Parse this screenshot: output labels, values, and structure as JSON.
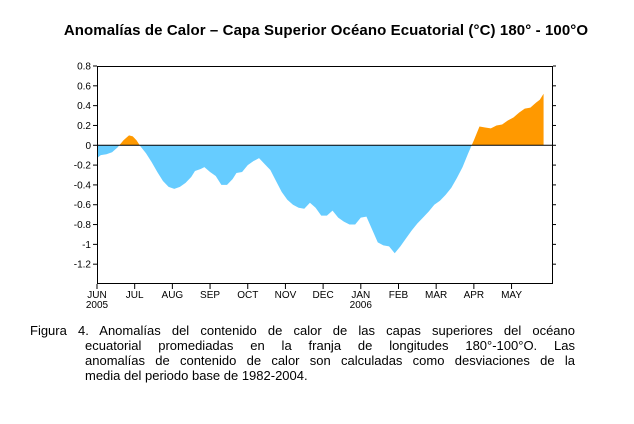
{
  "title": "Anomalías de Calor – Capa Superior Océano Ecuatorial (°C)  180° - 100°O",
  "caption": {
    "line1": "Figura 4. Anomalías del contenido de calor de las capas superiores del océano",
    "line2": "ecuatorial promediadas en la franja de longitudes 180°-100°O. Las",
    "line3": "anomalías  de contenido de calor son calculadas como desviaciones de la",
    "line4": "media del periodo base de 1982-2004."
  },
  "colors": {
    "positive": "#ff9900",
    "negative": "#66ccff",
    "axis": "#000000"
  },
  "chart_data": {
    "type": "area",
    "title": "Anomalías de Calor – Capa Superior Océano Ecuatorial (°C)  180° - 100°O",
    "xlabel": "",
    "ylabel": "",
    "ylim": [
      -1.4,
      0.8
    ],
    "yticks": [
      "0.8",
      "0.6",
      "0.4",
      "0.2",
      "0",
      "-0.2",
      "-0.4",
      "-0.6",
      "-0.8",
      "-1",
      "-1.2"
    ],
    "xticks": [
      {
        "label": "JUN",
        "sublabel": "2005",
        "month": 0
      },
      {
        "label": "JUL",
        "sublabel": "",
        "month": 1
      },
      {
        "label": "AUG",
        "sublabel": "",
        "month": 2
      },
      {
        "label": "SEP",
        "sublabel": "",
        "month": 3
      },
      {
        "label": "OCT",
        "sublabel": "",
        "month": 4
      },
      {
        "label": "NOV",
        "sublabel": "",
        "month": 5
      },
      {
        "label": "DEC",
        "sublabel": "",
        "month": 6
      },
      {
        "label": "JAN",
        "sublabel": "2006",
        "month": 7
      },
      {
        "label": "FEB",
        "sublabel": "",
        "month": 8
      },
      {
        "label": "MAR",
        "sublabel": "",
        "month": 9
      },
      {
        "label": "APR",
        "sublabel": "",
        "month": 10
      },
      {
        "label": "MAY",
        "sublabel": "",
        "month": 11
      }
    ],
    "x_range_months": [
      0,
      12.1
    ],
    "points": [
      [
        0.0,
        -0.13
      ],
      [
        0.1,
        -0.1
      ],
      [
        0.25,
        -0.09
      ],
      [
        0.4,
        -0.07
      ],
      [
        0.55,
        -0.02
      ],
      [
        0.7,
        0.05
      ],
      [
        0.85,
        0.1
      ],
      [
        0.95,
        0.09
      ],
      [
        1.05,
        0.05
      ],
      [
        1.15,
        -0.01
      ],
      [
        1.3,
        -0.08
      ],
      [
        1.45,
        -0.17
      ],
      [
        1.6,
        -0.27
      ],
      [
        1.75,
        -0.36
      ],
      [
        1.9,
        -0.42
      ],
      [
        2.05,
        -0.44
      ],
      [
        2.2,
        -0.42
      ],
      [
        2.35,
        -0.38
      ],
      [
        2.5,
        -0.32
      ],
      [
        2.6,
        -0.26
      ],
      [
        2.75,
        -0.24
      ],
      [
        2.85,
        -0.22
      ],
      [
        3.0,
        -0.27
      ],
      [
        3.15,
        -0.31
      ],
      [
        3.3,
        -0.4
      ],
      [
        3.45,
        -0.4
      ],
      [
        3.6,
        -0.34
      ],
      [
        3.7,
        -0.28
      ],
      [
        3.85,
        -0.27
      ],
      [
        4.0,
        -0.2
      ],
      [
        4.15,
        -0.16
      ],
      [
        4.3,
        -0.13
      ],
      [
        4.45,
        -0.19
      ],
      [
        4.6,
        -0.25
      ],
      [
        4.75,
        -0.36
      ],
      [
        4.9,
        -0.47
      ],
      [
        5.05,
        -0.55
      ],
      [
        5.2,
        -0.6
      ],
      [
        5.35,
        -0.63
      ],
      [
        5.5,
        -0.64
      ],
      [
        5.65,
        -0.58
      ],
      [
        5.8,
        -0.63
      ],
      [
        5.95,
        -0.71
      ],
      [
        6.1,
        -0.71
      ],
      [
        6.25,
        -0.66
      ],
      [
        6.4,
        -0.73
      ],
      [
        6.55,
        -0.77
      ],
      [
        6.7,
        -0.8
      ],
      [
        6.85,
        -0.8
      ],
      [
        7.0,
        -0.73
      ],
      [
        7.15,
        -0.72
      ],
      [
        7.3,
        -0.85
      ],
      [
        7.45,
        -0.98
      ],
      [
        7.6,
        -1.01
      ],
      [
        7.75,
        -1.02
      ],
      [
        7.9,
        -1.09
      ],
      [
        8.05,
        -1.02
      ],
      [
        8.2,
        -0.94
      ],
      [
        8.35,
        -0.86
      ],
      [
        8.5,
        -0.79
      ],
      [
        8.65,
        -0.73
      ],
      [
        8.8,
        -0.67
      ],
      [
        8.95,
        -0.6
      ],
      [
        9.1,
        -0.56
      ],
      [
        9.25,
        -0.5
      ],
      [
        9.4,
        -0.43
      ],
      [
        9.55,
        -0.33
      ],
      [
        9.7,
        -0.22
      ],
      [
        9.85,
        -0.08
      ],
      [
        10.0,
        0.05
      ],
      [
        10.15,
        0.19
      ],
      [
        10.3,
        0.18
      ],
      [
        10.45,
        0.17
      ],
      [
        10.6,
        0.2
      ],
      [
        10.75,
        0.21
      ],
      [
        10.9,
        0.25
      ],
      [
        11.05,
        0.28
      ],
      [
        11.2,
        0.33
      ],
      [
        11.35,
        0.37
      ],
      [
        11.5,
        0.38
      ],
      [
        11.65,
        0.43
      ],
      [
        11.75,
        0.46
      ],
      [
        11.85,
        0.52
      ]
    ]
  }
}
